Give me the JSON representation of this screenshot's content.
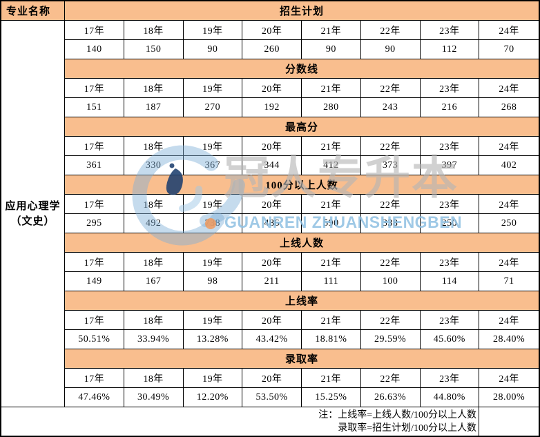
{
  "table": {
    "col_header": "专业名称",
    "row_label_line1": "应用心理学",
    "row_label_line2": "（文史）",
    "years": [
      "17年",
      "18年",
      "19年",
      "20年",
      "21年",
      "22年",
      "23年",
      "24年"
    ],
    "sections": [
      {
        "title": "招生计划",
        "values": [
          "140",
          "150",
          "90",
          "260",
          "90",
          "90",
          "112",
          "70"
        ]
      },
      {
        "title": "分数线",
        "values": [
          "151",
          "187",
          "270",
          "192",
          "280",
          "243",
          "216",
          "268"
        ]
      },
      {
        "title": "最高分",
        "values": [
          "361",
          "330",
          "367",
          "344",
          "412",
          "373",
          "397",
          "402"
        ]
      },
      {
        "title": "100分以上人数",
        "values": [
          "295",
          "492",
          "738",
          "486",
          "590",
          "338",
          "250",
          "250"
        ]
      },
      {
        "title": "上线人数",
        "values": [
          "149",
          "167",
          "98",
          "211",
          "111",
          "100",
          "114",
          "71"
        ]
      },
      {
        "title": "上线率",
        "values": [
          "50.51%",
          "33.94%",
          "13.28%",
          "43.42%",
          "18.81%",
          "29.59%",
          "45.60%",
          "28.40%"
        ]
      },
      {
        "title": "录取率",
        "values": [
          "47.46%",
          "30.49%",
          "12.20%",
          "53.50%",
          "15.25%",
          "26.63%",
          "44.80%",
          "28.00%"
        ]
      }
    ],
    "notes": [
      "注：上线率=上线人数/100分以上人数",
      "录取率=招生计划/100分以上人数"
    ]
  },
  "watermark": {
    "cn_text": "冠人专升本",
    "latin_text": "GUANREN ZHUANSHENGBEN",
    "logo": "guanren-g-logo"
  },
  "colors": {
    "band_orange": "#F9BE8E",
    "border": "#000000",
    "watermark_blue": "#8FC0E2",
    "watermark_ring": "#7FB0D8",
    "watermark_navy": "#1C3F6E",
    "watermark_gray": "#B5B5B5",
    "watermark_orange": "#F09A5E"
  }
}
